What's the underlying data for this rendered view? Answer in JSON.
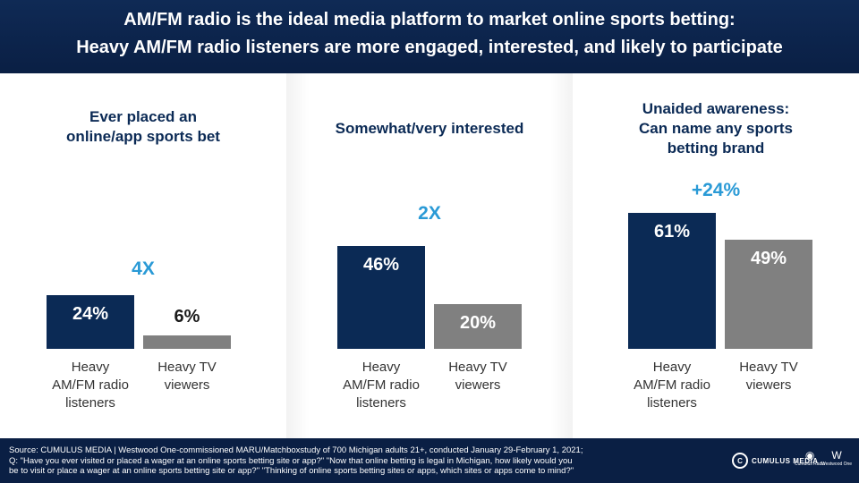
{
  "header": {
    "line1": "AM/FM radio is the ideal media platform to market online sports betting:",
    "line2": "Heavy AM/FM radio listeners are more engaged, interested, and likely to participate"
  },
  "chart_data": [
    {
      "type": "bar",
      "title": "Ever placed an online/app sports bet",
      "title_lines": [
        "Ever placed an",
        "online/app sports bet"
      ],
      "categories": [
        "Heavy AM/FM radio listeners",
        "Heavy TV viewers"
      ],
      "category_lines": [
        [
          "Heavy",
          "AM/FM radio",
          "listeners"
        ],
        [
          "Heavy TV",
          "viewers"
        ]
      ],
      "values": [
        24,
        6
      ],
      "value_labels": [
        "24%",
        "6%"
      ],
      "comparison": "4X",
      "colors": [
        "#0b2a55",
        "#808080"
      ]
    },
    {
      "type": "bar",
      "title": "Somewhat/very interested",
      "title_lines": [
        "Somewhat/very interested"
      ],
      "categories": [
        "Heavy AM/FM radio listeners",
        "Heavy TV viewers"
      ],
      "category_lines": [
        [
          "Heavy",
          "AM/FM radio",
          "listeners"
        ],
        [
          "Heavy TV",
          "viewers"
        ]
      ],
      "values": [
        46,
        20
      ],
      "value_labels": [
        "46%",
        "20%"
      ],
      "comparison": "2X",
      "colors": [
        "#0b2a55",
        "#808080"
      ]
    },
    {
      "type": "bar",
      "title": "Unaided awareness: Can name any sports betting brand",
      "title_lines": [
        "Unaided awareness:",
        "Can name any sports",
        "betting brand"
      ],
      "categories": [
        "Heavy AM/FM radio listeners",
        "Heavy TV viewers"
      ],
      "category_lines": [
        [
          "Heavy",
          "AM/FM radio",
          "listeners"
        ],
        [
          "Heavy TV",
          "viewers"
        ]
      ],
      "values": [
        61,
        49
      ],
      "value_labels": [
        "61%",
        "49%"
      ],
      "comparison": "+24%",
      "colors": [
        "#0b2a55",
        "#808080"
      ]
    }
  ],
  "footer": {
    "source_line1": "Source: CUMULUS MEDIA | Westwood One-commissioned MARU/Matchboxstudy of 700 Michigan adults 21+, conducted January 29-February 1, 2021;",
    "source_line2": "Q: \"Have you ever visited or placed a wager at an online sports betting site or app?\" \"Now that online betting is legal in Michigan, how likely would you",
    "source_line3": "be to visit or place a wager at an online sports betting site or app?\" \"Thinking of online sports betting sites or apps, which sites or apps come to mind?\"",
    "logos": [
      {
        "icon": "cumulus-media-logo",
        "text": "CUMULUS MEDIA"
      },
      {
        "icon": "cumulus-radio-logo",
        "text": "Cumulus Radio"
      },
      {
        "icon": "westwood-one-logo",
        "text": "Westwood One"
      }
    ]
  }
}
